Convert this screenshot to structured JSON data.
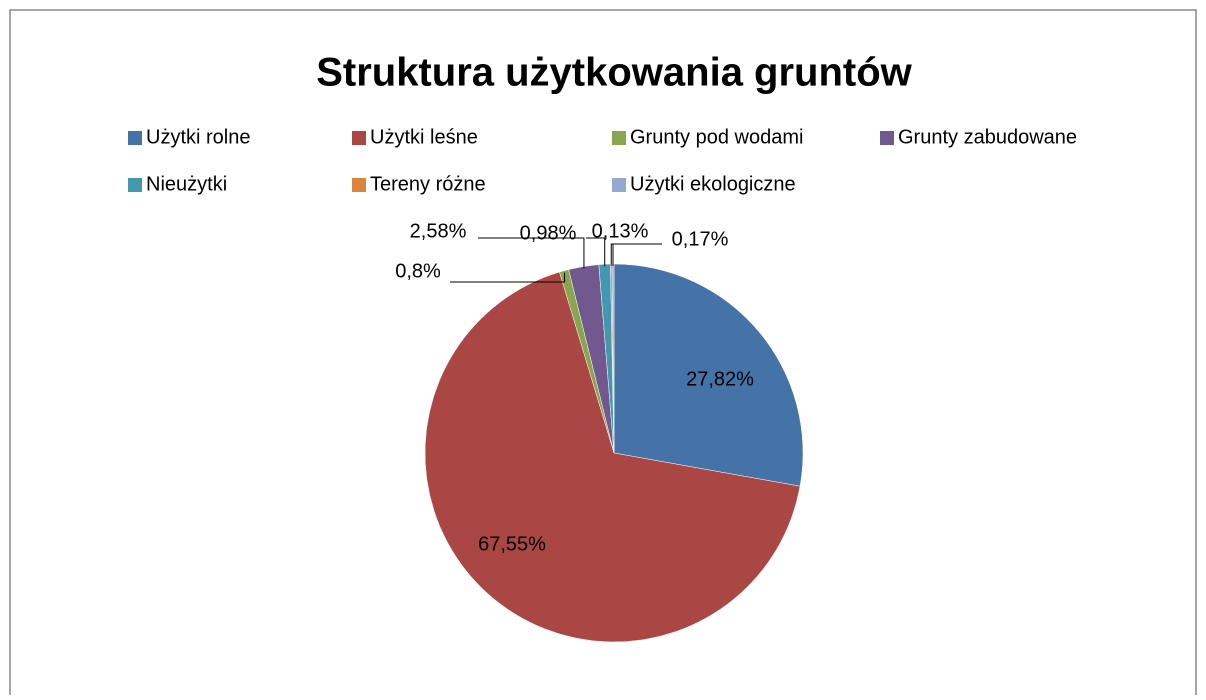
{
  "chart_data": {
    "type": "pie",
    "title": "Struktura użytkowania gruntów",
    "categories": [
      "Użytki rolne",
      "Użytki leśne",
      "Grunty pod wodami",
      "Grunty zabudowane",
      "Nieużytki",
      "Tereny różne",
      "Użytki ekologiczne"
    ],
    "values": [
      27.82,
      67.55,
      0.8,
      2.58,
      0.98,
      0.13,
      0.17
    ],
    "value_labels": [
      "27,82%",
      "67,55%",
      "0,8%",
      "2,58%",
      "0,98%",
      "0,13%",
      "0,17%"
    ],
    "colors": [
      "#4572A7",
      "#AA4643",
      "#89A54E",
      "#71588F",
      "#4198AF",
      "#DB843D",
      "#93A9CF"
    ],
    "legend": "top"
  }
}
